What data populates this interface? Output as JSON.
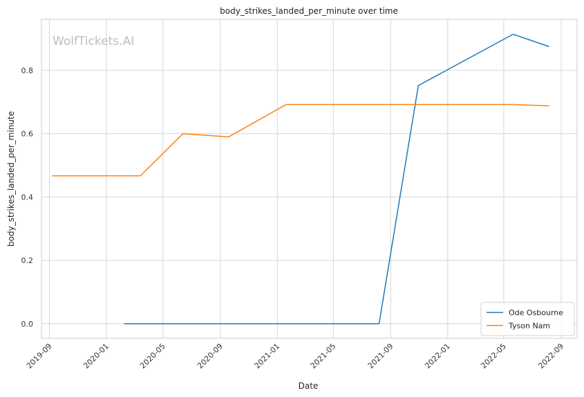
{
  "watermark": "WolfTickets.AI",
  "chart_data": {
    "type": "line",
    "title": "body_strikes_landed_per_minute over time",
    "xlabel": "Date",
    "ylabel": "body_strikes_landed_per_minute",
    "x_ticks": [
      "2019-09",
      "2020-01",
      "2020-05",
      "2020-09",
      "2021-01",
      "2021-05",
      "2021-09",
      "2022-01",
      "2022-05",
      "2022-09"
    ],
    "y_ticks": [
      "0.0",
      "0.2",
      "0.4",
      "0.6",
      "0.8"
    ],
    "ylim": [
      -0.046,
      0.961
    ],
    "xlim": [
      "2019-08-15",
      "2022-10-05"
    ],
    "grid": true,
    "legend_position": "lower right",
    "series": [
      {
        "name": "Ode Osbourne",
        "color": "#1f77b4",
        "points": [
          {
            "x": "2020-02-08",
            "y": 0.0
          },
          {
            "x": "2021-08-07",
            "y": 0.0
          },
          {
            "x": "2021-10-30",
            "y": 0.752
          },
          {
            "x": "2022-05-21",
            "y": 0.914
          },
          {
            "x": "2022-08-06",
            "y": 0.875
          }
        ]
      },
      {
        "name": "Tyson Nam",
        "color": "#ff7f0e",
        "points": [
          {
            "x": "2019-09-07",
            "y": 0.467
          },
          {
            "x": "2020-03-14",
            "y": 0.467
          },
          {
            "x": "2020-06-13",
            "y": 0.6
          },
          {
            "x": "2020-09-19",
            "y": 0.59
          },
          {
            "x": "2021-01-20",
            "y": 0.692
          },
          {
            "x": "2022-05-21",
            "y": 0.692
          },
          {
            "x": "2022-08-06",
            "y": 0.688
          }
        ]
      }
    ]
  }
}
